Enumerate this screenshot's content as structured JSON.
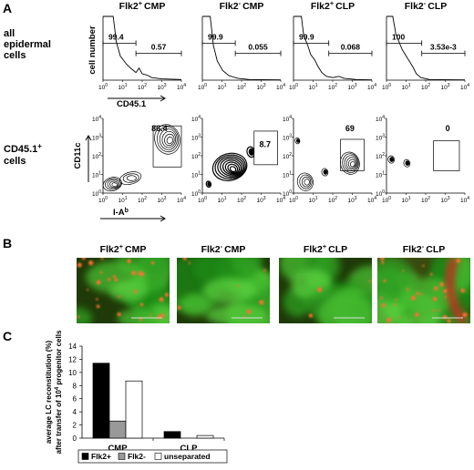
{
  "panel_a": {
    "label": "A",
    "row_label_1": [
      "all",
      "epidermal",
      "cells"
    ],
    "row_label_2": {
      "line1": "CD45.1",
      "sup": "+",
      "line2": "cells"
    },
    "y_axis_top": "cell number",
    "x_axis_top": "CD45.1",
    "y_axis_bottom": "CD11c",
    "x_axis_bottom": {
      "text": "I-A",
      "sup": "b"
    },
    "tick_base": "10",
    "tick_exponents": [
      "0",
      "1",
      "2",
      "3",
      "4"
    ],
    "columns": [
      {
        "gene": "Flk2",
        "sign": "+",
        "cell": "CMP",
        "histogram_gates": [
          "99.4",
          "0.57"
        ],
        "contour_gate": "86.4"
      },
      {
        "gene": "Flk2",
        "sign": "-",
        "cell": "CMP",
        "histogram_gates": [
          "99.9",
          "0.055"
        ],
        "contour_gate": "8.7"
      },
      {
        "gene": "Flk2",
        "sign": "+",
        "cell": "CLP",
        "histogram_gates": [
          "99.9",
          "0.068"
        ],
        "contour_gate": "69"
      },
      {
        "gene": "Flk2",
        "sign": "-",
        "cell": "CLP",
        "histogram_gates": [
          "100",
          "3.53e-3"
        ],
        "contour_gate": "0"
      }
    ]
  },
  "panel_b": {
    "label": "B",
    "titles": [
      {
        "gene": "Flk2",
        "sign": "+",
        "cell": "CMP"
      },
      {
        "gene": "Flk2",
        "sign": "-",
        "cell": "CMP"
      },
      {
        "gene": "Flk2",
        "sign": "+",
        "cell": "CLP"
      },
      {
        "gene": "Flk2",
        "sign": "-",
        "cell": "CLP"
      }
    ]
  },
  "chart_data": {
    "type": "bar",
    "label": "C",
    "y_label": {
      "line1": "average LC reconstitution (%)",
      "line2": "after transfer of 10",
      "sup": "4",
      "line2_end": " progenitor cells"
    },
    "categories": [
      "CMP",
      "CLP"
    ],
    "series": [
      {
        "name": "Flk2+",
        "color": "#000000",
        "values": [
          11.4,
          1.0
        ]
      },
      {
        "name": "Flk2-",
        "color": "#999999",
        "values": [
          2.6,
          0
        ]
      },
      {
        "name": "unseparated",
        "color": "#ffffff",
        "values": [
          8.7,
          0.4
        ]
      }
    ],
    "ylim": [
      0,
      14
    ],
    "yticks": [
      0,
      2,
      4,
      6,
      8,
      10,
      12,
      14
    ],
    "legend": "bottom"
  }
}
